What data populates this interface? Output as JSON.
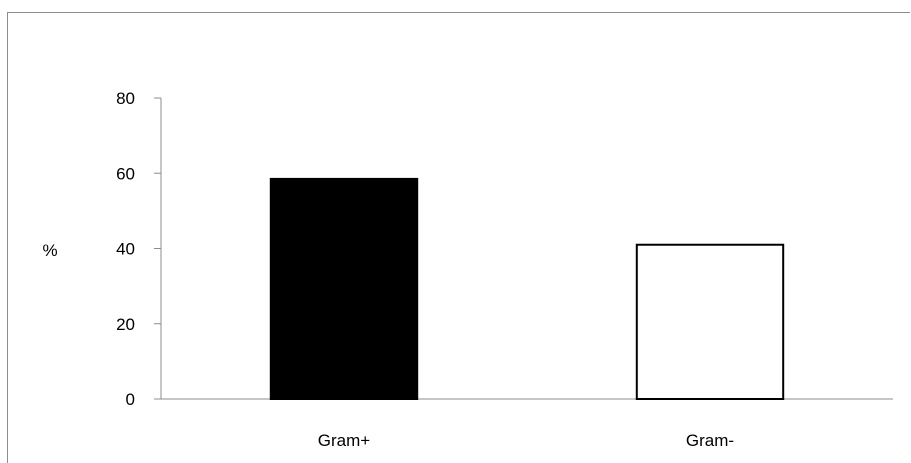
{
  "chart_data": {
    "type": "bar",
    "title": "",
    "xlabel": "",
    "ylabel": "%",
    "categories": [
      "Gram+",
      "Gram-"
    ],
    "values": [
      58.5,
      41
    ],
    "bar_colors": [
      "#000000",
      "#ffffff"
    ],
    "bar_edge_color": "#000000",
    "ylim": [
      0,
      80
    ],
    "yticks": [
      0,
      20,
      40,
      60,
      80
    ],
    "ytick_labels": [
      "0",
      "20",
      "40",
      "60",
      "80"
    ],
    "grid": false,
    "legend": "none"
  }
}
